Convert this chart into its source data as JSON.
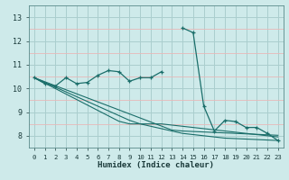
{
  "xlabel": "Humidex (Indice chaleur)",
  "ylabel": "",
  "bg_color": "#ceeaea",
  "grid_color": "#b8d8d8",
  "pink_grid_color": "#e8b8b8",
  "line_color": "#1a6e6a",
  "x_values": [
    0,
    1,
    2,
    3,
    4,
    5,
    6,
    7,
    8,
    9,
    10,
    11,
    12,
    13,
    14,
    15,
    16,
    17,
    18,
    19,
    20,
    21,
    22,
    23
  ],
  "series1": [
    10.45,
    10.2,
    10.1,
    10.45,
    10.2,
    10.25,
    10.55,
    10.75,
    10.7,
    10.3,
    10.45,
    10.45,
    10.7,
    null,
    12.55,
    12.35,
    9.25,
    8.2,
    8.65,
    8.6,
    8.35,
    8.35,
    8.1,
    7.8
  ],
  "trend1": [
    10.45,
    10.28,
    10.11,
    9.94,
    9.77,
    9.6,
    9.43,
    9.26,
    9.09,
    8.92,
    8.75,
    8.58,
    8.41,
    8.24,
    8.2,
    8.18,
    8.16,
    8.14,
    8.12,
    8.1,
    8.08,
    8.06,
    8.04,
    8.02
  ],
  "trend2": [
    10.45,
    10.22,
    9.99,
    9.76,
    9.53,
    9.3,
    9.07,
    8.84,
    8.61,
    8.5,
    8.5,
    8.5,
    8.5,
    8.45,
    8.4,
    8.35,
    8.3,
    8.25,
    8.2,
    8.15,
    8.1,
    8.05,
    8.0,
    7.95
  ],
  "trend3": [
    10.45,
    10.25,
    10.05,
    9.85,
    9.65,
    9.45,
    9.25,
    9.05,
    8.85,
    8.65,
    8.5,
    8.4,
    8.3,
    8.2,
    8.1,
    8.05,
    8.0,
    7.95,
    7.9,
    7.88,
    7.86,
    7.84,
    7.82,
    7.8
  ],
  "ylim": [
    7.5,
    13.5
  ],
  "yticks": [
    8,
    9,
    10,
    11,
    12,
    13
  ],
  "yminor": [
    8.5,
    9.5,
    10.5,
    11.5,
    12.5
  ],
  "xticks": [
    0,
    1,
    2,
    3,
    4,
    5,
    6,
    7,
    8,
    9,
    10,
    11,
    12,
    13,
    14,
    15,
    16,
    17,
    18,
    19,
    20,
    21,
    22,
    23
  ]
}
